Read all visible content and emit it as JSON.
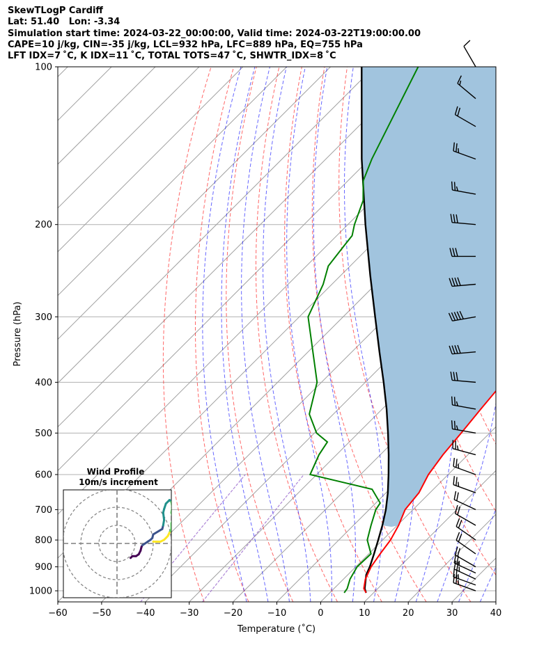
{
  "header": {
    "lines": [
      "SkewTLogP Cardiff",
      "Lat: 51.40   Lon: -3.34",
      "Simulation start time: 2024-03-22_00:00:00, Valid time: 2024-03-22T19:00:00.00",
      "CAPE=10 j/kg, CIN=-35 j/kg, LCL=932 hPa, LFC=889 hPa, EQ=755 hPa",
      "LFT IDX=7 ˚C, K IDX=11 ˚C, TOTAL TOTS=47 ˚C, SHWTR_IDX=8 ˚C"
    ]
  },
  "chart_data": {
    "type": "line",
    "subtype": "skew-T log-P diagram",
    "title": "SkewTLogP Cardiff",
    "xlabel": "Temperature (˚C)",
    "ylabel": "Pressure (hPa)",
    "xlim": [
      -60,
      40
    ],
    "ylim": [
      1050,
      100
    ],
    "y_scale": "log",
    "x_ticks": [
      "−60",
      "−50",
      "−40",
      "−30",
      "−20",
      "−10",
      "0",
      "10",
      "20",
      "30",
      "40"
    ],
    "y_ticks": [
      "100",
      "200",
      "300",
      "400",
      "500",
      "600",
      "700",
      "800",
      "900",
      "1000"
    ],
    "grid": true,
    "series": [
      {
        "role": "temperature",
        "color": "#ff0000",
        "points": [
          [
            1009,
            8.3
          ],
          [
            990,
            6.8
          ],
          [
            950,
            5.0
          ],
          [
            900,
            3.5
          ],
          [
            850,
            2.6
          ],
          [
            800,
            1.8
          ],
          [
            750,
            0.3
          ],
          [
            700,
            -1.8
          ],
          [
            650,
            -2.5
          ],
          [
            600,
            -4.5
          ],
          [
            550,
            -5.7
          ],
          [
            500,
            -6.5
          ],
          [
            450,
            -7.5
          ],
          [
            400,
            -8.5
          ],
          [
            350,
            -10.5
          ],
          [
            300,
            -14.5
          ],
          [
            280,
            -15.0
          ],
          [
            260,
            -15.2
          ],
          [
            240,
            -15.5
          ],
          [
            230,
            -16.0
          ],
          [
            200,
            -21.0
          ],
          [
            190,
            -21.5
          ],
          [
            170,
            -21.0
          ],
          [
            150,
            -21.0
          ],
          [
            130,
            -22.0
          ],
          [
            115,
            -23.0
          ],
          [
            100,
            -23.0
          ]
        ]
      },
      {
        "role": "dewpoint",
        "color": "#008000",
        "points": [
          [
            1009,
            3.3
          ],
          [
            990,
            3.0
          ],
          [
            950,
            1.5
          ],
          [
            900,
            0.3
          ],
          [
            850,
            0.5
          ],
          [
            800,
            -3.5
          ],
          [
            750,
            -6.0
          ],
          [
            700,
            -8.5
          ],
          [
            680,
            -9.0
          ],
          [
            640,
            -14.0
          ],
          [
            600,
            -31.5
          ],
          [
            550,
            -34.0
          ],
          [
            520,
            -35.0
          ],
          [
            500,
            -39.5
          ],
          [
            460,
            -45.5
          ],
          [
            400,
            -51.0
          ],
          [
            300,
            -68.0
          ],
          [
            260,
            -72.0
          ],
          [
            240,
            -75.0
          ],
          [
            220,
            -76.0
          ],
          [
            210,
            -76.5
          ],
          [
            200,
            -78.5
          ],
          [
            180,
            -82.0
          ],
          [
            165,
            -86.5
          ],
          [
            150,
            -89.5
          ],
          [
            100,
            -100.0
          ]
        ]
      },
      {
        "role": "parcel",
        "color": "#000000",
        "points": [
          [
            1009,
            8.3
          ],
          [
            990,
            7.0
          ],
          [
            932,
            4.2
          ],
          [
            900,
            3.2
          ],
          [
            850,
            1.2
          ],
          [
            800,
            -1.0
          ],
          [
            750,
            -3.4
          ],
          [
            700,
            -6.2
          ],
          [
            650,
            -9.6
          ],
          [
            600,
            -13.6
          ],
          [
            550,
            -18.1
          ],
          [
            500,
            -23.2
          ],
          [
            450,
            -29.0
          ],
          [
            400,
            -35.8
          ],
          [
            350,
            -43.7
          ],
          [
            300,
            -52.7
          ],
          [
            250,
            -63.3
          ],
          [
            200,
            -76.0
          ],
          [
            150,
            -91.8
          ],
          [
            100,
            -112.9
          ]
        ]
      }
    ],
    "cape_shading_color": "#a1c4de",
    "reference_lines": {
      "dry_adiabats": {
        "color": "#ff0000",
        "style": "dashed"
      },
      "moist_adiabats": {
        "color": "#0000ff",
        "style": "dashed"
      },
      "mixing_ratio": {
        "color": "#9966cc",
        "style": "dashed"
      },
      "isotherms": {
        "color": "#a0a0a0",
        "style": "solid"
      }
    },
    "wind_barbs": [
      {
        "p": 1000,
        "speed_kt": 25,
        "dir_deg": 290
      },
      {
        "p": 975,
        "speed_kt": 25,
        "dir_deg": 290
      },
      {
        "p": 950,
        "speed_kt": 25,
        "dir_deg": 295
      },
      {
        "p": 925,
        "speed_kt": 25,
        "dir_deg": 295
      },
      {
        "p": 900,
        "speed_kt": 20,
        "dir_deg": 300
      },
      {
        "p": 850,
        "speed_kt": 20,
        "dir_deg": 305
      },
      {
        "p": 800,
        "speed_kt": 20,
        "dir_deg": 305
      },
      {
        "p": 750,
        "speed_kt": 20,
        "dir_deg": 300
      },
      {
        "p": 700,
        "speed_kt": 20,
        "dir_deg": 295
      },
      {
        "p": 650,
        "speed_kt": 25,
        "dir_deg": 290
      },
      {
        "p": 600,
        "speed_kt": 25,
        "dir_deg": 290
      },
      {
        "p": 550,
        "speed_kt": 25,
        "dir_deg": 285
      },
      {
        "p": 500,
        "speed_kt": 25,
        "dir_deg": 280
      },
      {
        "p": 450,
        "speed_kt": 25,
        "dir_deg": 280
      },
      {
        "p": 400,
        "speed_kt": 30,
        "dir_deg": 275
      },
      {
        "p": 350,
        "speed_kt": 40,
        "dir_deg": 265
      },
      {
        "p": 300,
        "speed_kt": 50,
        "dir_deg": 260
      },
      {
        "p": 260,
        "speed_kt": 40,
        "dir_deg": 265
      },
      {
        "p": 230,
        "speed_kt": 30,
        "dir_deg": 270
      },
      {
        "p": 200,
        "speed_kt": 30,
        "dir_deg": 275
      },
      {
        "p": 175,
        "speed_kt": 25,
        "dir_deg": 280
      },
      {
        "p": 150,
        "speed_kt": 25,
        "dir_deg": 290
      },
      {
        "p": 130,
        "speed_kt": 20,
        "dir_deg": 300
      },
      {
        "p": 115,
        "speed_kt": 15,
        "dir_deg": 310
      },
      {
        "p": 100,
        "speed_kt": 10,
        "dir_deg": 330
      }
    ],
    "inset": {
      "title_line1": "Wind Profile",
      "title_line2": "10m/s increment",
      "rings_mps": [
        10,
        20,
        30
      ],
      "hodograph_uv": [
        [
          7.5,
          -8
        ],
        [
          8.5,
          -7
        ],
        [
          10.5,
          -7
        ],
        [
          12,
          -6
        ],
        [
          13,
          -4
        ],
        [
          13.5,
          -2
        ],
        [
          14,
          -1
        ],
        [
          17,
          1
        ],
        [
          18.5,
          2
        ],
        [
          19.5,
          3
        ],
        [
          20,
          5
        ],
        [
          25,
          8
        ],
        [
          25.5,
          10
        ],
        [
          26,
          13
        ],
        [
          25.5,
          17
        ],
        [
          26,
          19
        ],
        [
          27,
          22
        ],
        [
          29,
          24
        ],
        [
          30,
          23
        ],
        [
          30.5,
          20
        ],
        [
          30,
          17
        ],
        [
          31,
          14
        ],
        [
          30,
          11
        ],
        [
          30,
          8
        ],
        [
          29,
          6
        ],
        [
          28,
          4
        ],
        [
          27,
          3
        ],
        [
          26,
          2
        ],
        [
          24,
          1
        ],
        [
          22,
          1
        ],
        [
          20,
          1
        ]
      ]
    }
  }
}
